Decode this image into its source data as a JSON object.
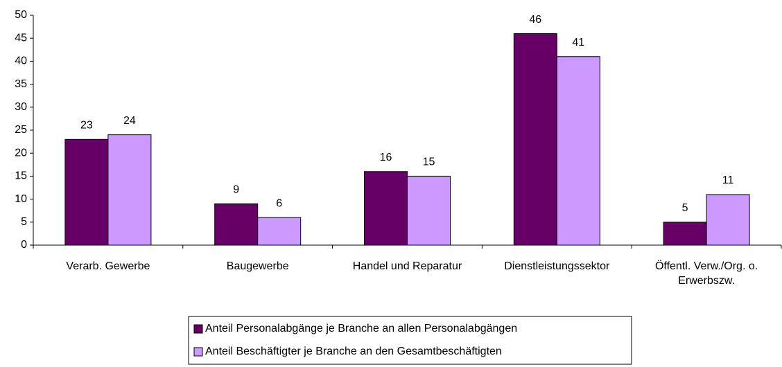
{
  "chart_data": {
    "type": "bar",
    "categories": [
      "Verarb. Gewerbe",
      "Baugewerbe",
      "Handel und Reparatur",
      "Dienstleistungssektor",
      "Öffentl. Verw./Org. o. Erwerbszw."
    ],
    "series": [
      {
        "name": "Anteil Personalabgänge je Branche an allen Personalabgängen",
        "color": "#660066",
        "values": [
          23,
          9,
          16,
          46,
          5
        ]
      },
      {
        "name": "Anteil Beschäftigter je Branche an den Gesamtbeschäftigten",
        "color": "#cc99ff",
        "values": [
          24,
          6,
          15,
          41,
          11
        ]
      }
    ],
    "ylim": [
      0,
      50
    ],
    "yticks": [
      0,
      5,
      10,
      15,
      20,
      25,
      30,
      35,
      40,
      45,
      50
    ],
    "grid": false,
    "legend": "bottom"
  }
}
